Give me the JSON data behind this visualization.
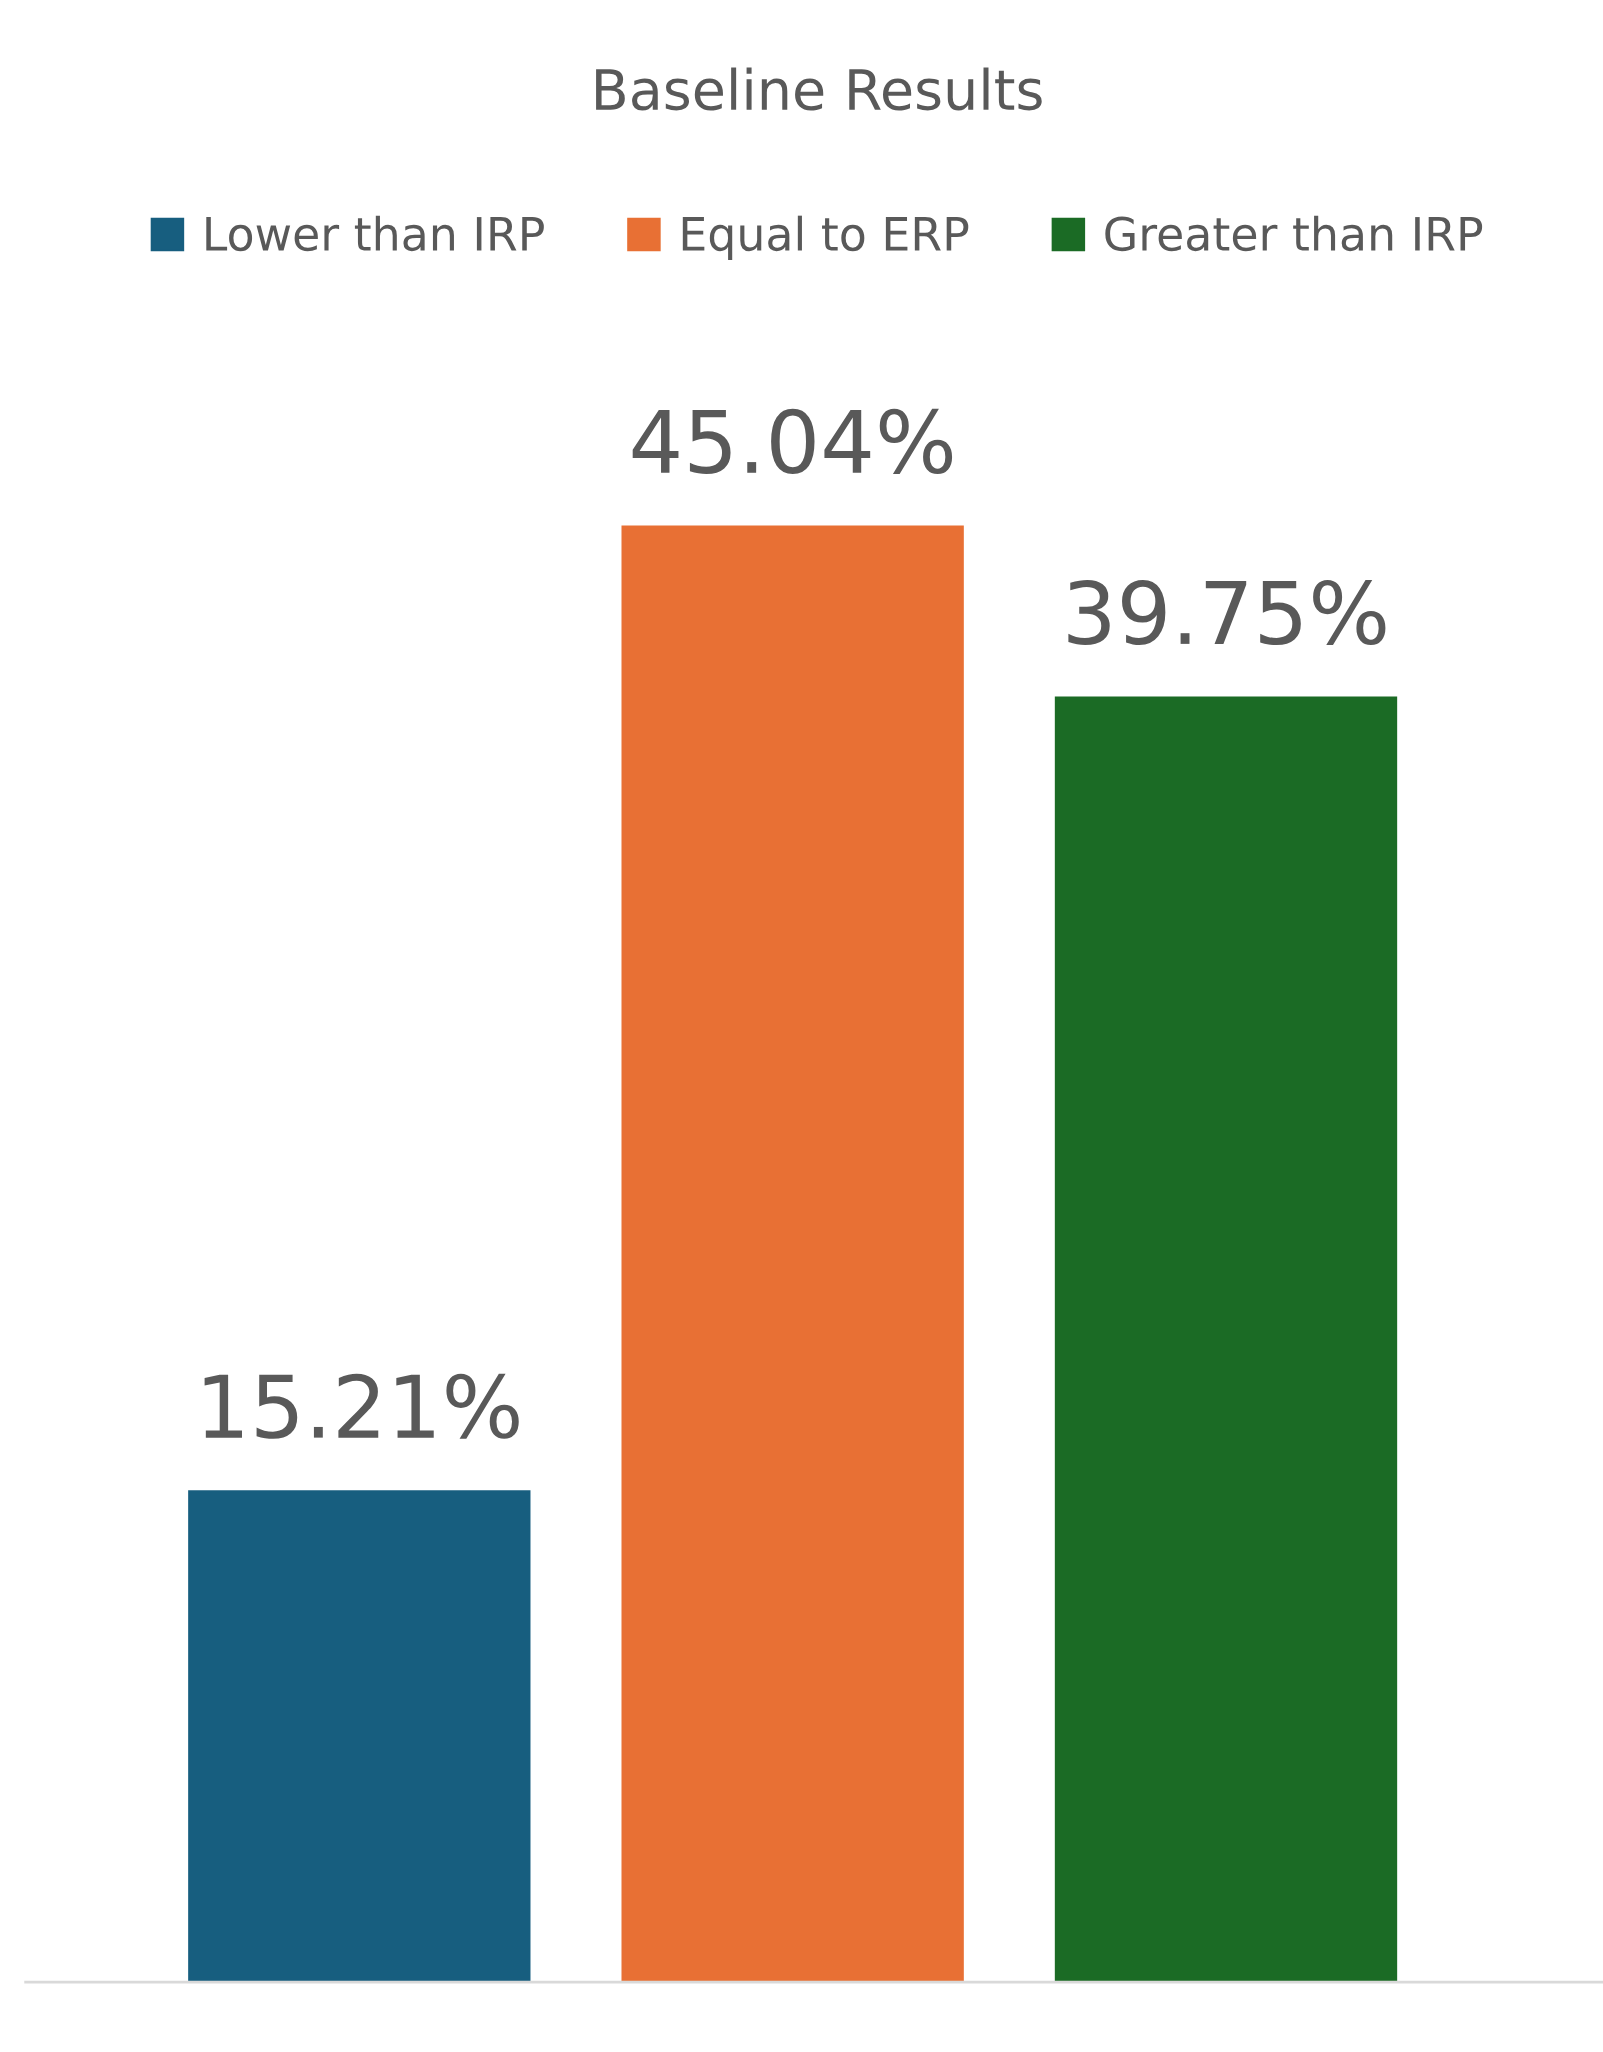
{
  "chart_data": {
    "type": "bar",
    "title": "Baseline Results",
    "categories": [
      null
    ],
    "series": [
      {
        "name": "Lower than IRP",
        "color": "#175e7f",
        "values": [
          15.21
        ],
        "value_labels": [
          "15.21%"
        ]
      },
      {
        "name": "Equal to ERP",
        "color": "#e87034",
        "values": [
          45.04
        ],
        "value_labels": [
          "45.04%"
        ]
      },
      {
        "name": "Greater than IRP",
        "color": "#1b6b25",
        "values": [
          39.75
        ],
        "value_labels": [
          "39.75%"
        ]
      }
    ],
    "legend": "top"
  }
}
